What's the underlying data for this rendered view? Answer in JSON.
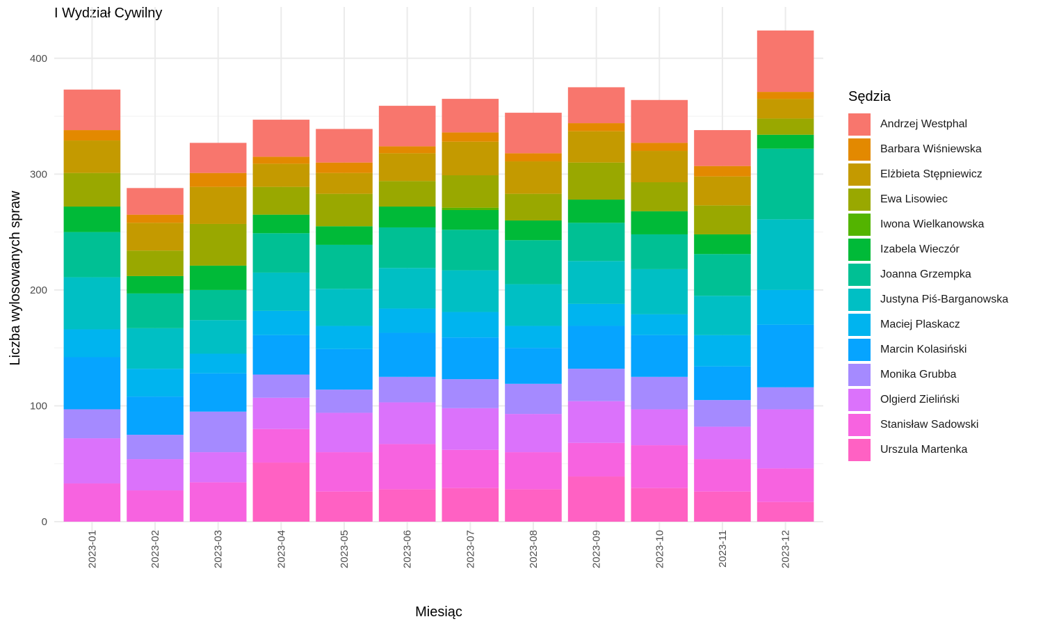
{
  "chart_data": {
    "type": "bar",
    "stacked": true,
    "title": "I Wydział Cywilny",
    "xlabel": "Miesiąc",
    "ylabel": "Liczba wylosowanych spraw",
    "ylim": [
      0,
      440
    ],
    "yticks": [
      0,
      100,
      200,
      300,
      400
    ],
    "grid": true,
    "legend_title": "Sędzia",
    "legend_position": "right",
    "categories": [
      "2023-01",
      "2023-02",
      "2023-03",
      "2023-04",
      "2023-05",
      "2023-06",
      "2023-07",
      "2023-08",
      "2023-09",
      "2023-10",
      "2023-11",
      "2023-12"
    ],
    "series": [
      {
        "name": "Urszula Martenka",
        "color": "#FF61C3",
        "values": [
          0,
          0,
          0,
          51,
          26,
          28,
          29,
          28,
          39,
          29,
          26,
          17
        ]
      },
      {
        "name": "Stanisław Sadowski",
        "color": "#F763E0",
        "values": [
          33,
          27,
          34,
          29,
          34,
          39,
          33,
          32,
          29,
          37,
          28,
          29
        ]
      },
      {
        "name": "Olgierd Zieliński",
        "color": "#DB72FB",
        "values": [
          39,
          27,
          26,
          27,
          34,
          36,
          36,
          33,
          36,
          31,
          28,
          51
        ]
      },
      {
        "name": "Monika Grubba",
        "color": "#A58AFF",
        "values": [
          25,
          21,
          35,
          20,
          20,
          22,
          25,
          26,
          28,
          28,
          23,
          19
        ]
      },
      {
        "name": "Marcin Kolasiński",
        "color": "#06A4FF",
        "values": [
          45,
          33,
          33,
          34,
          35,
          38,
          36,
          31,
          37,
          36,
          29,
          54
        ]
      },
      {
        "name": "Maciej Plaskacz",
        "color": "#00B4EF",
        "values": [
          24,
          24,
          17,
          21,
          20,
          21,
          22,
          19,
          19,
          18,
          27,
          30
        ]
      },
      {
        "name": "Justyna Piś-Barganowska",
        "color": "#00BFC4",
        "values": [
          45,
          35,
          29,
          33,
          32,
          35,
          36,
          36,
          37,
          39,
          34,
          61
        ]
      },
      {
        "name": "Joanna Grzempka",
        "color": "#00C094",
        "values": [
          39,
          30,
          26,
          34,
          38,
          35,
          35,
          38,
          33,
          30,
          36,
          61
        ]
      },
      {
        "name": "Izabela Wieczór",
        "color": "#00BA38",
        "values": [
          22,
          15,
          21,
          16,
          16,
          18,
          17,
          17,
          20,
          20,
          17,
          12
        ]
      },
      {
        "name": "Iwona Wielkanowska",
        "color": "#53B400",
        "values": [
          0,
          0,
          0,
          0,
          0,
          0,
          2,
          0,
          0,
          0,
          0,
          0
        ]
      },
      {
        "name": "Ewa Lisowiec",
        "color": "#99A800",
        "values": [
          29,
          22,
          36,
          24,
          28,
          22,
          28,
          23,
          32,
          25,
          25,
          14
        ]
      },
      {
        "name": "Elżbieta Stępniewicz",
        "color": "#C49A00",
        "values": [
          28,
          24,
          32,
          20,
          18,
          24,
          29,
          28,
          27,
          27,
          25,
          17
        ]
      },
      {
        "name": "Barbara Wiśniewska",
        "color": "#E38900",
        "values": [
          9,
          7,
          12,
          6,
          9,
          6,
          8,
          7,
          7,
          7,
          9,
          6
        ]
      },
      {
        "name": "Andrzej Westphal",
        "color": "#F8766D",
        "values": [
          35,
          23,
          26,
          32,
          29,
          35,
          29,
          35,
          31,
          37,
          31,
          53
        ]
      }
    ]
  }
}
